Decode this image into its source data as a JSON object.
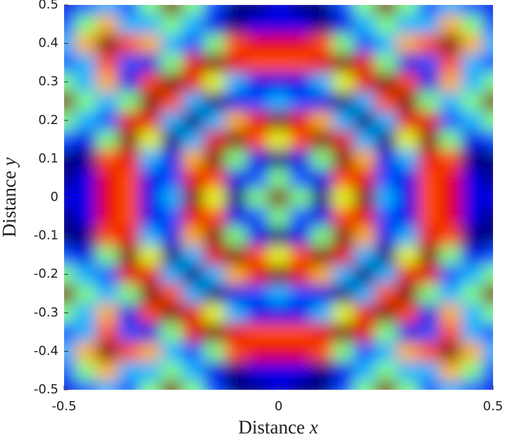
{
  "chart_data": {
    "type": "heatmap",
    "xlabel": [
      "Distance",
      "x"
    ],
    "ylabel": [
      "Distance",
      "y"
    ],
    "xlim": [
      -0.5,
      0.5
    ],
    "ylim": [
      -0.5,
      0.5
    ],
    "xticks": [
      -0.5,
      0,
      0.5
    ],
    "yticks": [
      -0.5,
      -0.4,
      -0.3,
      -0.2,
      -0.1,
      0,
      0.1,
      0.2,
      0.3,
      0.4,
      0.5
    ],
    "colormap": "jet",
    "x": [
      -0.5,
      -0.45,
      -0.4,
      -0.35,
      -0.3,
      -0.25,
      -0.2,
      -0.15,
      -0.1,
      -0.05,
      0,
      0.05,
      0.1,
      0.15,
      0.2,
      0.25,
      0.3,
      0.35,
      0.4,
      0.45,
      0.5
    ],
    "y": [
      -0.5,
      -0.45,
      -0.4,
      -0.35,
      -0.3,
      -0.25,
      -0.2,
      -0.15,
      -0.1,
      -0.05,
      0,
      0.05,
      0.1,
      0.15,
      0.2,
      0.25,
      0.3,
      0.35,
      0.4,
      0.45,
      0.5
    ],
    "z": [
      [
        0.1,
        0.2,
        0.3,
        0.2,
        0.5,
        1,
        0.5,
        0.2,
        0,
        0,
        0.1,
        0,
        0,
        0.2,
        0.5,
        1,
        0.5,
        0.2,
        0.3,
        0.2,
        0.1
      ],
      [
        0.2,
        0.5,
        0.7,
        0.3,
        0.3,
        0.5,
        0.3,
        0.1,
        0,
        0.1,
        0.1,
        0.1,
        0,
        0.1,
        0.3,
        0.5,
        0.3,
        0.3,
        0.7,
        0.5,
        0.2
      ],
      [
        0.3,
        0.7,
        1,
        0.8,
        0.7,
        0.3,
        0.2,
        0.5,
        0.8,
        0.9,
        0.9,
        0.9,
        0.8,
        0.5,
        0.2,
        0.3,
        0.7,
        0.8,
        1,
        0.7,
        0.3
      ],
      [
        0.2,
        0.3,
        0.8,
        0.2,
        0.1,
        0.5,
        0.9,
        1,
        0.9,
        0.8,
        0.8,
        0.8,
        0.9,
        1,
        0.9,
        0.5,
        0.1,
        0.2,
        0.8,
        0.3,
        0.2
      ],
      [
        0.5,
        0.3,
        0.7,
        0.1,
        0.8,
        1,
        0.9,
        0.6,
        0.3,
        0.1,
        0.1,
        0.1,
        0.3,
        0.6,
        0.9,
        1,
        0.8,
        0.1,
        0.7,
        0.3,
        0.5
      ],
      [
        1,
        0.5,
        0.3,
        0.5,
        1,
        0.8,
        0.3,
        0,
        0.1,
        0.2,
        0.3,
        0.2,
        0.1,
        0,
        0.3,
        0.8,
        1,
        0.5,
        0.3,
        0.5,
        1
      ],
      [
        0.5,
        0.3,
        0.2,
        0.9,
        0.9,
        0.3,
        0,
        0.3,
        0.7,
        0.9,
        1,
        0.9,
        0.7,
        0.3,
        0,
        0.3,
        0.9,
        0.9,
        0.2,
        0.3,
        0.5
      ],
      [
        0.2,
        0.1,
        0.5,
        1,
        0.6,
        0,
        0.3,
        0.9,
        1,
        0.8,
        0.6,
        0.8,
        1,
        0.9,
        0.3,
        0,
        0.6,
        1,
        0.5,
        0.1,
        0.2
      ],
      [
        0,
        0,
        0.8,
        0.9,
        0.3,
        0.1,
        0.7,
        1,
        0.5,
        0.1,
        0,
        0.1,
        0.5,
        1,
        0.7,
        0.1,
        0.3,
        0.9,
        0.8,
        0,
        0
      ],
      [
        0,
        0.1,
        0.9,
        0.8,
        0.1,
        0.2,
        0.9,
        0.8,
        0.1,
        0.2,
        0.5,
        0.2,
        0.1,
        0.8,
        0.9,
        0.2,
        0.1,
        0.8,
        0.9,
        0.1,
        0
      ],
      [
        0.1,
        0.1,
        0.9,
        0.8,
        0.1,
        0.3,
        1,
        0.6,
        0,
        0.5,
        1,
        0.5,
        0,
        0.6,
        1,
        0.3,
        0.1,
        0.8,
        0.9,
        0.1,
        0.1
      ],
      [
        0,
        0.1,
        0.9,
        0.8,
        0.1,
        0.2,
        0.9,
        0.8,
        0.1,
        0.2,
        0.5,
        0.2,
        0.1,
        0.8,
        0.9,
        0.2,
        0.1,
        0.8,
        0.9,
        0.1,
        0
      ],
      [
        0,
        0,
        0.8,
        0.9,
        0.3,
        0.1,
        0.7,
        1,
        0.5,
        0.1,
        0,
        0.1,
        0.5,
        1,
        0.7,
        0.1,
        0.3,
        0.9,
        0.8,
        0,
        0
      ],
      [
        0.2,
        0.1,
        0.5,
        1,
        0.6,
        0,
        0.3,
        0.9,
        1,
        0.8,
        0.6,
        0.8,
        1,
        0.9,
        0.3,
        0,
        0.6,
        1,
        0.5,
        0.1,
        0.2
      ],
      [
        0.5,
        0.3,
        0.2,
        0.9,
        0.9,
        0.3,
        0,
        0.3,
        0.7,
        0.9,
        1,
        0.9,
        0.7,
        0.3,
        0,
        0.3,
        0.9,
        0.9,
        0.2,
        0.3,
        0.5
      ],
      [
        1,
        0.5,
        0.3,
        0.5,
        1,
        0.8,
        0.3,
        0,
        0.1,
        0.2,
        0.3,
        0.2,
        0.1,
        0,
        0.3,
        0.8,
        1,
        0.5,
        0.3,
        0.5,
        1
      ],
      [
        0.5,
        0.3,
        0.7,
        0.1,
        0.8,
        1,
        0.9,
        0.6,
        0.3,
        0.1,
        0.1,
        0.1,
        0.3,
        0.6,
        0.9,
        1,
        0.8,
        0.1,
        0.7,
        0.3,
        0.5
      ],
      [
        0.2,
        0.3,
        0.8,
        0.2,
        0.1,
        0.5,
        0.9,
        1,
        0.9,
        0.8,
        0.8,
        0.8,
        0.9,
        1,
        0.9,
        0.5,
        0.1,
        0.2,
        0.8,
        0.3,
        0.2
      ],
      [
        0.3,
        0.7,
        1,
        0.8,
        0.7,
        0.3,
        0.2,
        0.5,
        0.8,
        0.9,
        0.9,
        0.9,
        0.8,
        0.5,
        0.2,
        0.3,
        0.7,
        0.8,
        1,
        0.7,
        0.3
      ],
      [
        0.2,
        0.5,
        0.7,
        0.3,
        0.3,
        0.5,
        0.3,
        0.1,
        0,
        0.1,
        0.1,
        0.1,
        0,
        0.1,
        0.3,
        0.5,
        0.3,
        0.3,
        0.7,
        0.5,
        0.2
      ],
      [
        0.1,
        0.2,
        0.3,
        0.2,
        0.5,
        1,
        0.5,
        0.2,
        0,
        0,
        0.1,
        0,
        0,
        0.2,
        0.5,
        1,
        0.5,
        0.2,
        0.3,
        0.2,
        0.1
      ]
    ]
  }
}
